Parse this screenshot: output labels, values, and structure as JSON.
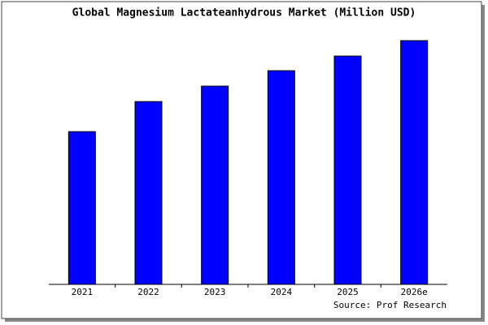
{
  "chart_data": {
    "type": "bar",
    "title": "Global Magnesium Lactateanhydrous Market (Million USD)",
    "categories": [
      "2021",
      "2022",
      "2023",
      "2024",
      "2025",
      "2026e"
    ],
    "values": [
      188,
      225,
      244,
      263,
      281,
      300
    ],
    "color": "#0000ff",
    "source": "Source: Prof Research"
  }
}
